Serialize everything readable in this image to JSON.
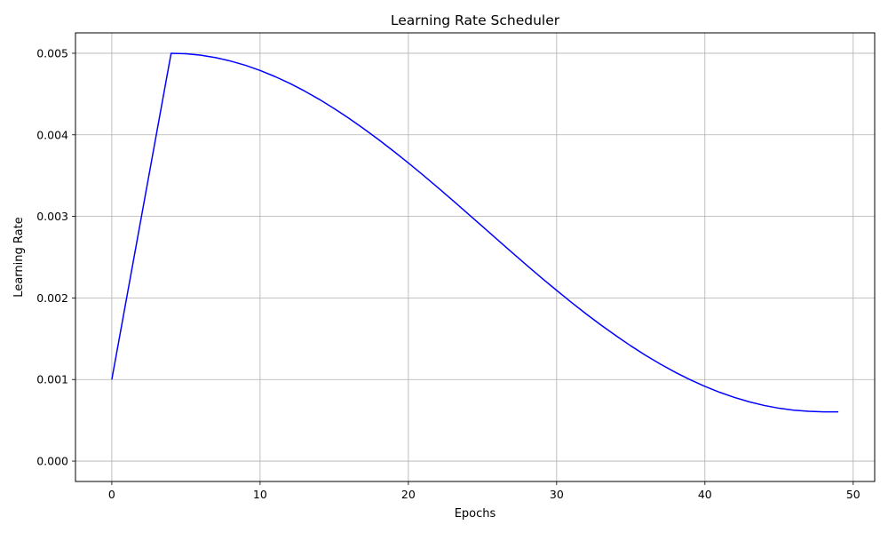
{
  "chart_data": {
    "type": "line",
    "title": "Learning Rate Scheduler",
    "xlabel": "Epochs",
    "ylabel": "Learning Rate",
    "xlim": [
      -2.45,
      51.45
    ],
    "ylim": [
      -0.00025,
      0.00525
    ],
    "xticks": [
      0,
      10,
      20,
      30,
      40,
      50
    ],
    "xtick_labels": [
      "0",
      "10",
      "20",
      "30",
      "40",
      "50"
    ],
    "yticks": [
      0.0,
      0.001,
      0.002,
      0.003,
      0.004,
      0.005
    ],
    "ytick_labels": [
      "0.000",
      "0.001",
      "0.002",
      "0.003",
      "0.004",
      "0.005"
    ],
    "grid": true,
    "series": [
      {
        "color": "#0000ff",
        "x": [
          0,
          1,
          2,
          3,
          4,
          5,
          6,
          7,
          8,
          9,
          10,
          11,
          12,
          13,
          14,
          15,
          16,
          17,
          18,
          19,
          20,
          21,
          22,
          23,
          24,
          25,
          26,
          27,
          28,
          29,
          30,
          31,
          32,
          33,
          34,
          35,
          36,
          37,
          38,
          39,
          40,
          41,
          42,
          43,
          44,
          45,
          46,
          47,
          48,
          49
        ],
        "y": [
          0.001,
          0.002,
          0.003,
          0.004,
          0.005,
          0.004994,
          0.004976,
          0.004946,
          0.004905,
          0.004853,
          0.004789,
          0.004715,
          0.004631,
          0.004537,
          0.004434,
          0.004322,
          0.004202,
          0.004074,
          0.00394,
          0.0038,
          0.003655,
          0.003505,
          0.003351,
          0.003195,
          0.003036,
          0.002876,
          0.002716,
          0.002557,
          0.002399,
          0.002244,
          0.002093,
          0.001945,
          0.001803,
          0.001667,
          0.001537,
          0.001413,
          0.001297,
          0.001189,
          0.001089,
          0.000998,
          0.000916,
          0.000843,
          0.00078,
          0.000726,
          0.000682,
          0.000648,
          0.000624,
          0.00061,
          0.000604,
          0.000604
        ]
      }
    ]
  }
}
